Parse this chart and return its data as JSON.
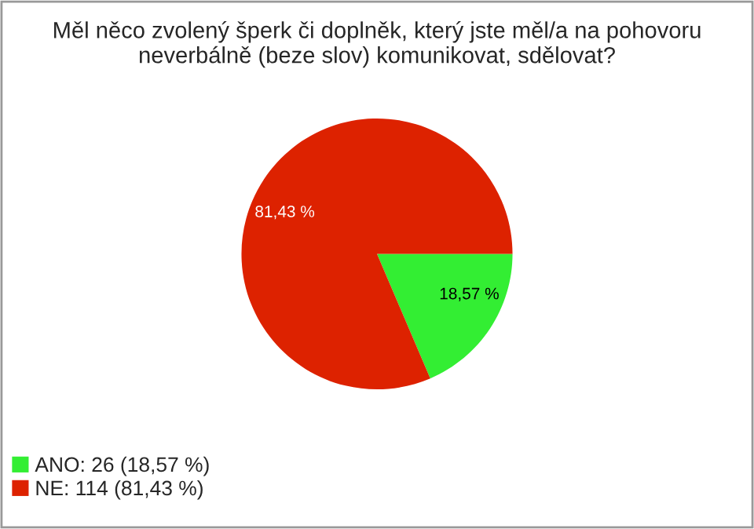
{
  "chart_data": {
    "type": "pie",
    "title": "Měl něco zvolený šperk či doplněk, který jste měl/a na pohovoru neverbálně (beze slov) komunikovat, sdělovat?",
    "categories": [
      "ANO: 26 (18,57 %)",
      "NE: 114 (81,43 %)"
    ],
    "values": [
      18.57,
      81.43
    ],
    "colors": [
      "#33ee33",
      "#dd2200"
    ],
    "value_labels": [
      "18,57 %",
      "81,43 %"
    ],
    "legend": "bottom left"
  }
}
